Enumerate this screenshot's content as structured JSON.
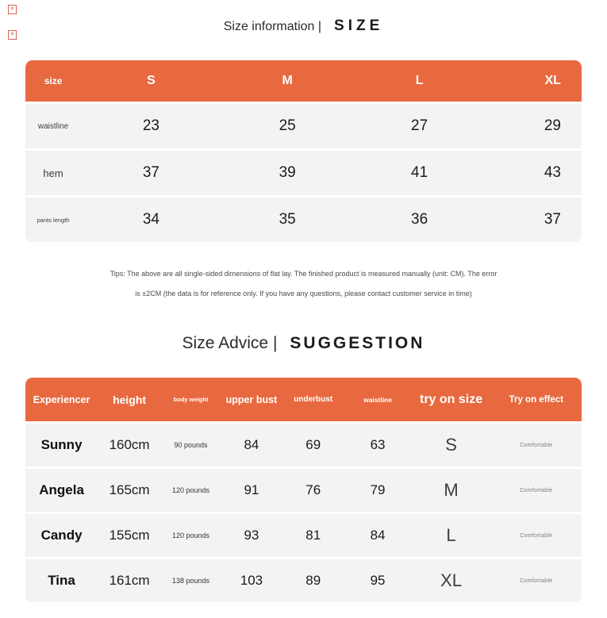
{
  "colors": {
    "accent": "#E8693F",
    "row_bg": "#F3F3F3"
  },
  "artifacts": {
    "glyphs": [
      "✕",
      "✕"
    ]
  },
  "size_section": {
    "title": "Size information |",
    "title_accent": "SIZE",
    "table": {
      "headers": [
        "size",
        "S",
        "M",
        "L",
        "XL"
      ],
      "rows": [
        {
          "label": "waistline",
          "values": [
            "23",
            "25",
            "27",
            "29"
          ]
        },
        {
          "label": "hem",
          "values": [
            "37",
            "39",
            "41",
            "43"
          ]
        },
        {
          "label": "pants length",
          "values": [
            "34",
            "35",
            "36",
            "37"
          ]
        }
      ]
    },
    "tips_line1": "Tips: The above are all single-sided dimensions of flat lay. The finished product is measured manually (unit: CM). The error",
    "tips_line2": "is ±2CM (the data is for reference only. If you have any questions, please contact customer service in time)"
  },
  "advice_section": {
    "title": "Size Advice |",
    "title_accent": "SUGGESTION",
    "table": {
      "headers": [
        "Experiencer",
        "height",
        "body weight",
        "upper bust",
        "underbust",
        "waistline",
        "try on size",
        "Try on effect"
      ],
      "rows": [
        {
          "name": "Sunny",
          "height": "160cm",
          "weight": "90 pounds",
          "upper_bust": "84",
          "underbust": "69",
          "waistline": "63",
          "try_on_size": "S",
          "effect": "Comfortable"
        },
        {
          "name": "Angela",
          "height": "165cm",
          "weight": "120 pounds",
          "upper_bust": "91",
          "underbust": "76",
          "waistline": "79",
          "try_on_size": "M",
          "effect": "Comfortable"
        },
        {
          "name": "Candy",
          "height": "155cm",
          "weight": "120 pounds",
          "upper_bust": "93",
          "underbust": "81",
          "waistline": "84",
          "try_on_size": "L",
          "effect": "Comfortable"
        },
        {
          "name": "Tina",
          "height": "161cm",
          "weight": "138 pounds",
          "upper_bust": "103",
          "underbust": "89",
          "waistline": "95",
          "try_on_size": "XL",
          "effect": "Comfortable"
        }
      ]
    }
  }
}
